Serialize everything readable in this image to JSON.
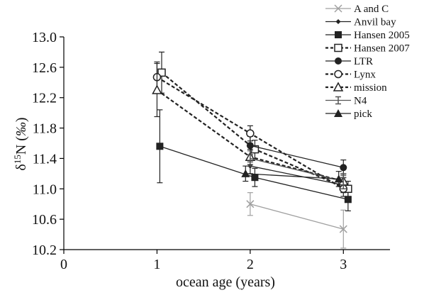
{
  "chart_data": {
    "type": "line",
    "ylabel": "δ15N (‰)",
    "xlabel": "ocean age (years)",
    "xlim": [
      0,
      3.5
    ],
    "ylim": [
      10.2,
      13.0
    ],
    "x_ticks": [
      0,
      1,
      2,
      3
    ],
    "y_ticks": [
      10.2,
      10.6,
      11.0,
      11.4,
      11.8,
      12.2,
      12.6,
      13.0
    ],
    "y_tick_labels": [
      "10.2",
      "10.6",
      "11.0",
      "11.4",
      "11.8",
      "12.2",
      "12.6",
      "13.0"
    ],
    "grid": false,
    "legend_position": "top-right",
    "series": [
      {
        "name": "A and C",
        "marker": "x",
        "dash": "solid",
        "color": "#a0a0a0",
        "x": [
          2,
          3
        ],
        "y": [
          10.8,
          10.47
        ],
        "err": [
          0.15,
          0.25
        ]
      },
      {
        "name": "Anvil  bay",
        "marker": "diamond",
        "dash": "solid",
        "color": "#222222",
        "x": [
          2,
          3
        ],
        "y": [
          11.3,
          11.05
        ],
        "err": [
          0.1,
          0.1
        ]
      },
      {
        "name": "Hansen 2005",
        "marker": "square",
        "dash": "solid",
        "color": "#222222",
        "x": [
          1.03,
          2.05,
          3.05
        ],
        "y": [
          11.56,
          11.15,
          10.86
        ],
        "err": [
          0.48,
          0.12,
          0.15
        ]
      },
      {
        "name": "Hansen 2007",
        "marker": "square-open",
        "dash": "dashed",
        "color": "#222222",
        "x": [
          1.05,
          2.05,
          3.05
        ],
        "y": [
          12.53,
          11.52,
          11.0
        ],
        "err": [
          0.27,
          0.12,
          0.1
        ]
      },
      {
        "name": "LTR",
        "marker": "circle",
        "dash": "solid",
        "color": "#222222",
        "x": [
          2,
          3
        ],
        "y": [
          11.57,
          11.28
        ],
        "err": [
          0.12,
          0.1
        ]
      },
      {
        "name": "Lynx",
        "marker": "circle-open",
        "dash": "dashed",
        "color": "#222222",
        "x": [
          1,
          2,
          3
        ],
        "y": [
          12.47,
          11.73,
          11.0
        ],
        "err": [
          0.2,
          0.1,
          0.1
        ]
      },
      {
        "name": "mission",
        "marker": "triangle-open",
        "dash": "dashed",
        "color": "#222222",
        "x": [
          1,
          2,
          3
        ],
        "y": [
          12.3,
          11.42,
          11.1
        ],
        "err": [
          0.35,
          0.1,
          0.1
        ]
      },
      {
        "name": "N4",
        "marker": "star",
        "dash": "solid",
        "color": "#555555",
        "x": [
          2,
          3
        ],
        "y": [
          11.4,
          11.1
        ],
        "err": [
          0.1,
          0.1
        ]
      },
      {
        "name": "pick",
        "marker": "triangle",
        "dash": "solid",
        "color": "#222222",
        "x": [
          1.95,
          2.95
        ],
        "y": [
          11.2,
          11.13
        ],
        "err": [
          0.1,
          0.1
        ]
      }
    ]
  }
}
